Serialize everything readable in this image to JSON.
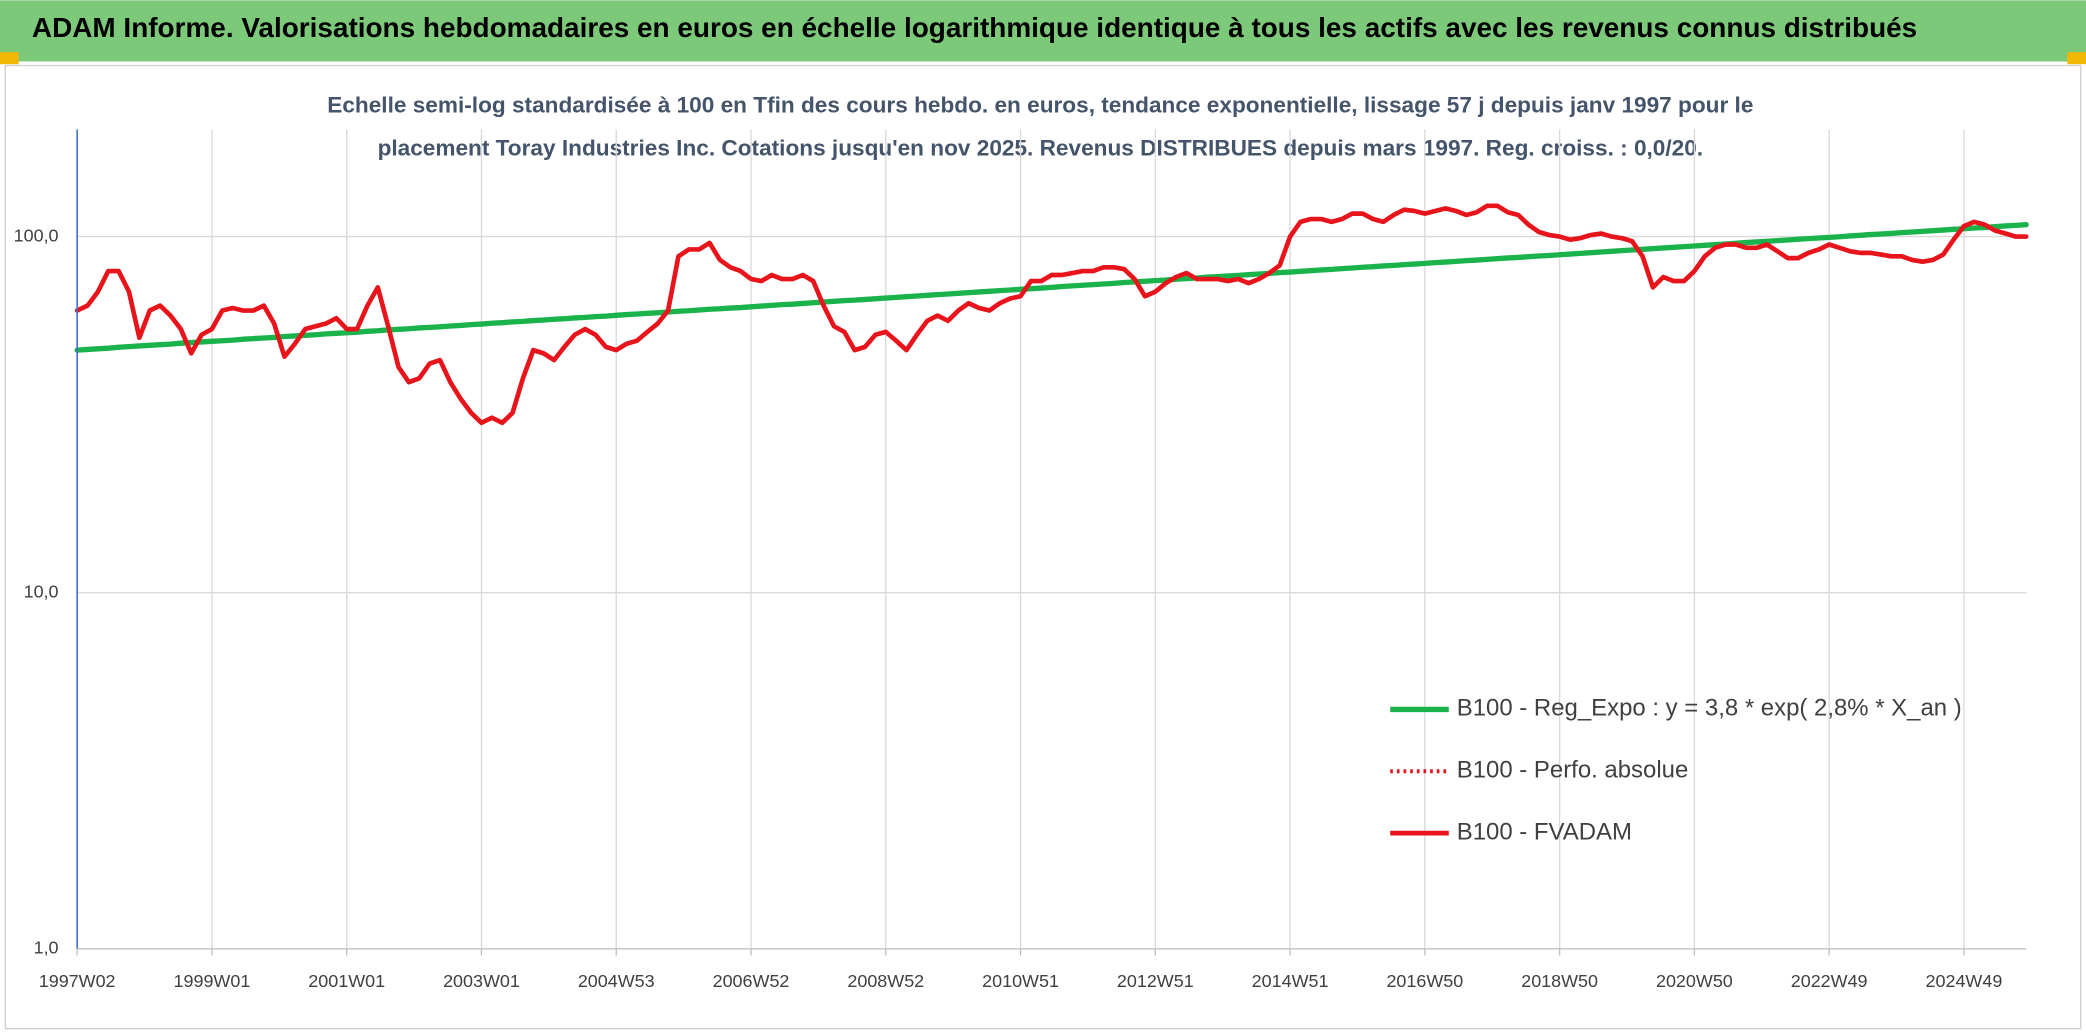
{
  "chart_data": {
    "type": "line",
    "title": "ADAM Informe. Valorisations hebdomadaires en euros en échelle logarithmique identique à tous les actifs avec les revenus connus distribués",
    "subtitle": [
      "Echelle semi-log standardisée à 100 en Tfin des cours hebdo. en euros, tendance exponentielle, lissage 57 j depuis janv 1997 pour le",
      "placement Toray Industries Inc. Cotations jusqu'en nov 2025. Revenus DISTRIBUES depuis mars 1997. Reg. croiss. : 0,0/20."
    ],
    "log_scale": true,
    "grid": true,
    "legend": "lower right",
    "ylim": [
      1,
      200
    ],
    "yticks": [
      {
        "value": 1,
        "label": "1,0"
      },
      {
        "value": 10,
        "label": "10,0"
      },
      {
        "value": 100,
        "label": "100,0"
      }
    ],
    "categories": [
      "1997W02",
      null,
      null,
      null,
      null,
      null,
      null,
      null,
      null,
      null,
      null,
      null,
      null,
      "1999W01",
      null,
      null,
      null,
      null,
      null,
      null,
      null,
      null,
      null,
      null,
      null,
      null,
      "2001W01",
      null,
      null,
      null,
      null,
      null,
      null,
      null,
      null,
      null,
      null,
      null,
      null,
      "2003W01",
      null,
      null,
      null,
      null,
      null,
      null,
      null,
      null,
      null,
      null,
      null,
      null,
      "2004W53",
      null,
      null,
      null,
      null,
      null,
      null,
      null,
      null,
      null,
      null,
      null,
      null,
      "2006W52",
      null,
      null,
      null,
      null,
      null,
      null,
      null,
      null,
      null,
      null,
      null,
      null,
      "2008W52",
      null,
      null,
      null,
      null,
      null,
      null,
      null,
      null,
      null,
      null,
      null,
      null,
      "2010W51",
      null,
      null,
      null,
      null,
      null,
      null,
      null,
      null,
      null,
      null,
      null,
      null,
      "2012W51",
      null,
      null,
      null,
      null,
      null,
      null,
      null,
      null,
      null,
      null,
      null,
      null,
      "2014W51",
      null,
      null,
      null,
      null,
      null,
      null,
      null,
      null,
      null,
      null,
      null,
      null,
      "2016W50",
      null,
      null,
      null,
      null,
      null,
      null,
      null,
      null,
      null,
      null,
      null,
      null,
      "2018W50",
      null,
      null,
      null,
      null,
      null,
      null,
      null,
      null,
      null,
      null,
      null,
      null,
      "2020W50",
      null,
      null,
      null,
      null,
      null,
      null,
      null,
      null,
      null,
      null,
      null,
      null,
      "2022W49",
      null,
      null,
      null,
      null,
      null,
      null,
      null,
      null,
      null,
      null,
      null,
      null,
      "2024W49",
      null,
      null,
      null,
      null,
      null,
      null
    ],
    "series": [
      {
        "name": "B100 - Reg_Expo : y = 3,8 * exp( 2,8% *  X_an )",
        "color": "#19b24b",
        "dash": "solid",
        "width": 4,
        "values": [
          48.0,
          48.2,
          48.4,
          48.6,
          48.9,
          49.1,
          49.3,
          49.5,
          49.7,
          49.9,
          50.2,
          50.4,
          50.6,
          50.8,
          51.0,
          51.2,
          51.5,
          51.7,
          51.9,
          52.1,
          52.4,
          52.6,
          52.8,
          53.0,
          53.3,
          53.5,
          53.7,
          53.9,
          54.2,
          54.4,
          54.7,
          54.9,
          55.1,
          55.4,
          55.6,
          55.8,
          56.1,
          56.3,
          56.6,
          56.8,
          57.1,
          57.3,
          57.6,
          57.8,
          58.1,
          58.3,
          58.6,
          58.8,
          59.1,
          59.3,
          59.6,
          59.8,
          60.1,
          60.4,
          60.6,
          60.9,
          61.1,
          61.4,
          61.7,
          61.9,
          62.2,
          62.5,
          62.7,
          63.0,
          63.2,
          63.5,
          63.8,
          64.1,
          64.4,
          64.6,
          64.9,
          65.2,
          65.5,
          65.8,
          66.1,
          66.3,
          66.6,
          66.9,
          67.2,
          67.5,
          67.8,
          68.1,
          68.4,
          68.7,
          69.0,
          69.3,
          69.6,
          69.9,
          70.2,
          70.5,
          70.8,
          71.1,
          71.4,
          71.7,
          72.0,
          72.4,
          72.7,
          73.0,
          73.3,
          73.6,
          73.9,
          74.3,
          74.6,
          74.9,
          75.2,
          75.5,
          75.9,
          76.2,
          76.5,
          76.9,
          77.2,
          77.5,
          77.8,
          78.2,
          78.5,
          78.8,
          79.2,
          79.5,
          79.9,
          80.2,
          80.6,
          80.9,
          81.3,
          81.6,
          82.0,
          82.3,
          82.7,
          83.0,
          83.4,
          83.7,
          84.1,
          84.5,
          84.8,
          85.2,
          85.6,
          85.9,
          86.3,
          86.7,
          87.1,
          87.4,
          87.8,
          88.2,
          88.5,
          88.9,
          89.3,
          89.7,
          90.1,
          90.5,
          90.9,
          91.3,
          91.7,
          92.1,
          92.5,
          92.9,
          93.3,
          93.7,
          94.1,
          94.5,
          94.9,
          95.3,
          95.8,
          96.2,
          96.6,
          97.0,
          97.4,
          97.8,
          98.3,
          98.7,
          99.1,
          99.5,
          99.9,
          100.4,
          100.8,
          101.3,
          101.7,
          102.1,
          102.6,
          103.0,
          103.4,
          103.9,
          104.3,
          104.8,
          105.2,
          105.7,
          106.1,
          106.6,
          107.1,
          107.5,
          108.0
        ]
      },
      {
        "name": "B100 - Perfo. absolue",
        "color": "#e8141b",
        "dash": "dotted",
        "width": 3,
        "values": [
          62,
          64,
          70,
          80,
          80,
          70,
          52,
          62,
          64,
          60,
          55,
          47,
          53,
          55,
          62,
          63,
          62,
          62,
          64,
          57,
          46,
          50,
          55,
          56,
          57,
          59,
          55,
          55,
          64,
          72,
          56,
          43,
          39,
          40,
          44,
          45,
          39,
          35,
          32,
          30,
          31,
          30,
          32,
          40,
          48,
          47,
          45,
          49,
          53,
          55,
          53,
          49,
          48,
          50,
          51,
          54,
          57,
          62,
          88,
          92,
          92,
          96,
          86,
          82,
          80,
          76,
          75,
          78,
          76,
          76,
          78,
          75,
          64,
          56,
          54,
          48,
          49,
          53,
          54,
          51,
          48,
          53,
          58,
          60,
          58,
          62,
          65,
          63,
          62,
          65,
          67,
          68,
          75,
          75,
          78,
          78,
          79,
          80,
          80,
          82,
          82,
          81,
          76,
          68,
          70,
          74,
          77,
          79,
          76,
          76,
          76,
          75,
          76,
          74,
          76,
          79,
          83,
          100,
          110,
          112,
          112,
          110,
          112,
          116,
          116,
          112,
          110,
          115,
          119,
          118,
          116,
          118,
          120,
          118,
          115,
          117,
          122,
          122,
          117,
          115,
          108,
          103,
          101,
          100,
          98,
          99,
          101,
          102,
          100,
          99,
          97,
          88,
          72,
          77,
          75,
          75,
          80,
          88,
          93,
          95,
          95,
          93,
          93,
          95,
          91,
          87,
          87,
          90,
          92,
          95,
          93,
          91,
          90,
          90,
          89,
          88,
          88,
          86,
          85,
          86,
          89,
          98,
          107,
          110,
          108,
          104,
          102,
          100,
          100
        ]
      },
      {
        "name": "B100 - FVADAM",
        "color": "#e8141b",
        "dash": "solid",
        "width": 3.5,
        "values": [
          62,
          64,
          70,
          80,
          80,
          70,
          52,
          62,
          64,
          60,
          55,
          47,
          53,
          55,
          62,
          63,
          62,
          62,
          64,
          57,
          46,
          50,
          55,
          56,
          57,
          59,
          55,
          55,
          64,
          72,
          56,
          43,
          39,
          40,
          44,
          45,
          39,
          35,
          32,
          30,
          31,
          30,
          32,
          40,
          48,
          47,
          45,
          49,
          53,
          55,
          53,
          49,
          48,
          50,
          51,
          54,
          57,
          62,
          88,
          92,
          92,
          96,
          86,
          82,
          80,
          76,
          75,
          78,
          76,
          76,
          78,
          75,
          64,
          56,
          54,
          48,
          49,
          53,
          54,
          51,
          48,
          53,
          58,
          60,
          58,
          62,
          65,
          63,
          62,
          65,
          67,
          68,
          75,
          75,
          78,
          78,
          79,
          80,
          80,
          82,
          82,
          81,
          76,
          68,
          70,
          74,
          77,
          79,
          76,
          76,
          76,
          75,
          76,
          74,
          76,
          79,
          83,
          100,
          110,
          112,
          112,
          110,
          112,
          116,
          116,
          112,
          110,
          115,
          119,
          118,
          116,
          118,
          120,
          118,
          115,
          117,
          122,
          122,
          117,
          115,
          108,
          103,
          101,
          100,
          98,
          99,
          101,
          102,
          100,
          99,
          97,
          88,
          72,
          77,
          75,
          75,
          80,
          88,
          93,
          95,
          95,
          93,
          93,
          95,
          91,
          87,
          87,
          90,
          92,
          95,
          93,
          91,
          90,
          90,
          89,
          88,
          88,
          86,
          85,
          86,
          89,
          98,
          107,
          110,
          108,
          104,
          102,
          100,
          100
        ]
      }
    ]
  }
}
